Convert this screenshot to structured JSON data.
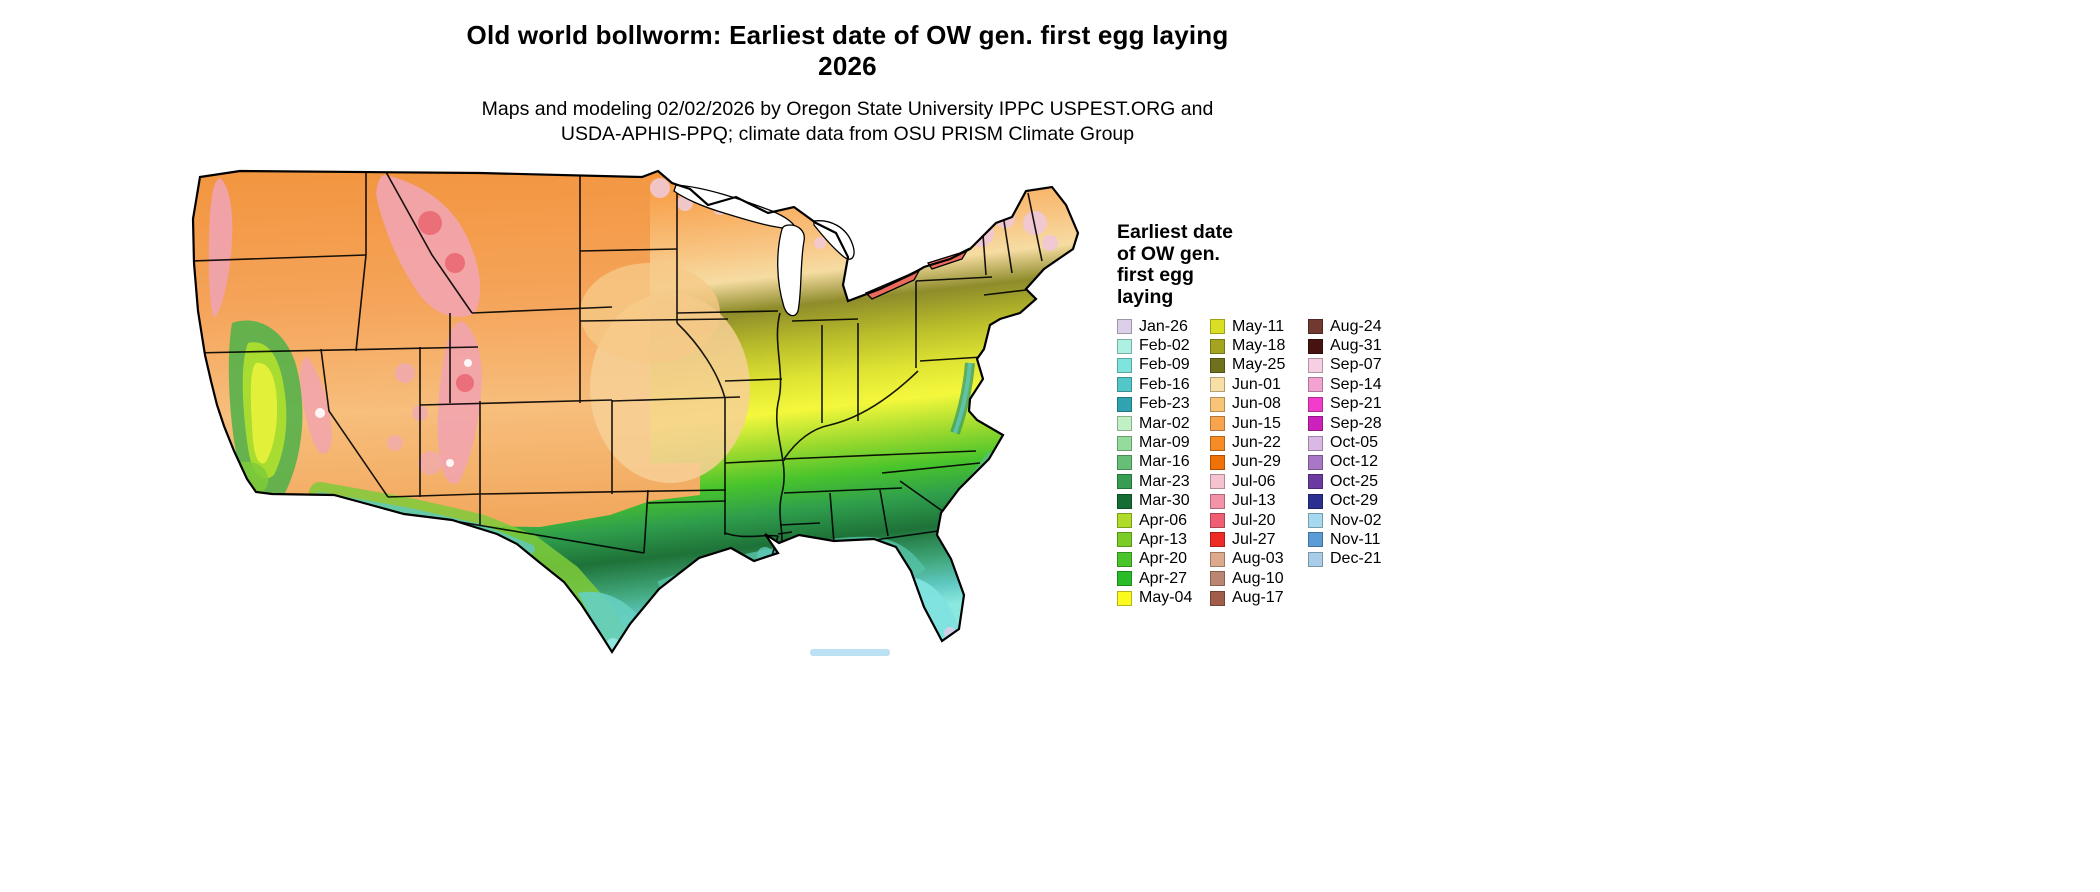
{
  "title": {
    "line1": "Old world bollworm: Earliest date of OW gen. first egg laying",
    "line2": "2026"
  },
  "subtitle": {
    "line1": "Maps and modeling 02/02/2026 by Oregon State University IPPC USPEST.ORG and",
    "line2": "USDA-APHIS-PPQ; climate data from OSU PRISM Climate Group"
  },
  "map": {
    "region": "Contiguous United States",
    "type": "raster phenology map",
    "variable": "Earliest date of OW gen. first egg laying"
  },
  "legend": {
    "title_lines": [
      "Earliest date",
      "of OW gen.",
      "first egg",
      "laying"
    ],
    "columns": [
      [
        {
          "label": "Jan-26",
          "color": "#DCCFE9"
        },
        {
          "label": "Feb-02",
          "color": "#ADF1E3"
        },
        {
          "label": "Feb-09",
          "color": "#7FE4DE"
        },
        {
          "label": "Feb-16",
          "color": "#53C6C8"
        },
        {
          "label": "Feb-23",
          "color": "#2FA3B0"
        },
        {
          "label": "Mar-02",
          "color": "#C2F0C5"
        },
        {
          "label": "Mar-09",
          "color": "#94DB9C"
        },
        {
          "label": "Mar-16",
          "color": "#67BE77"
        },
        {
          "label": "Mar-23",
          "color": "#379D52"
        },
        {
          "label": "Mar-30",
          "color": "#156D33"
        },
        {
          "label": "Apr-06",
          "color": "#AEDC28"
        },
        {
          "label": "Apr-13",
          "color": "#7BCC26"
        },
        {
          "label": "Apr-20",
          "color": "#47C52B"
        },
        {
          "label": "Apr-27",
          "color": "#2ABB28"
        },
        {
          "label": "May-04",
          "color": "#FAFA1E"
        }
      ],
      [
        {
          "label": "May-11",
          "color": "#DADF23"
        },
        {
          "label": "May-18",
          "color": "#A4A421"
        },
        {
          "label": "May-25",
          "color": "#70711C"
        },
        {
          "label": "Jun-01",
          "color": "#F7DFA6"
        },
        {
          "label": "Jun-08",
          "color": "#F8C478"
        },
        {
          "label": "Jun-15",
          "color": "#F8A44E"
        },
        {
          "label": "Jun-22",
          "color": "#F78B26"
        },
        {
          "label": "Jun-29",
          "color": "#F07207"
        },
        {
          "label": "Jul-06",
          "color": "#F5C3D0"
        },
        {
          "label": "Jul-13",
          "color": "#F293A7"
        },
        {
          "label": "Jul-20",
          "color": "#EF5E72"
        },
        {
          "label": "Jul-27",
          "color": "#EE2B24"
        },
        {
          "label": "Aug-03",
          "color": "#DCA98C"
        },
        {
          "label": "Aug-10",
          "color": "#BA8672"
        },
        {
          "label": "Aug-17",
          "color": "#A05E4A"
        }
      ],
      [
        {
          "label": "Aug-24",
          "color": "#713A31"
        },
        {
          "label": "Aug-31",
          "color": "#471310"
        },
        {
          "label": "Sep-07",
          "color": "#F6CFE5"
        },
        {
          "label": "Sep-14",
          "color": "#F3A2D1"
        },
        {
          "label": "Sep-21",
          "color": "#F23CCC"
        },
        {
          "label": "Sep-28",
          "color": "#CC22BB"
        },
        {
          "label": "Oct-05",
          "color": "#D9B8E5"
        },
        {
          "label": "Oct-12",
          "color": "#A878C7"
        },
        {
          "label": "Oct-25",
          "color": "#6B3AA0"
        },
        {
          "label": "Oct-29",
          "color": "#2B2F90"
        },
        {
          "label": "Nov-02",
          "color": "#A6D9EF"
        },
        {
          "label": "Nov-11",
          "color": "#5C9CD6"
        },
        {
          "label": "Dec-21",
          "color": "#A9CDE9"
        }
      ]
    ]
  }
}
